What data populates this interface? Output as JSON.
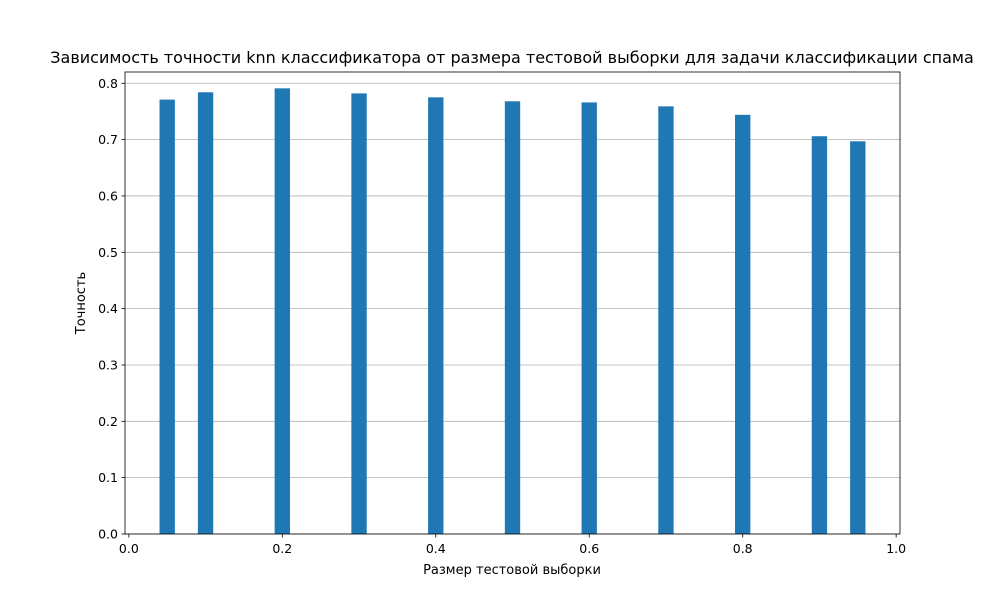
{
  "chart_data": {
    "type": "bar",
    "title": "Зависимость точности knn классификатора от размера тестовой выборки для задачи классификации спама",
    "xlabel": "Размер тестовой выборки",
    "ylabel": "Точность",
    "xlim": [
      -0.005,
      1.005
    ],
    "ylim": [
      0,
      0.82
    ],
    "bar_width": 0.02,
    "x_ticks": [
      "0.0",
      "0.2",
      "0.4",
      "0.6",
      "0.8",
      "1.0"
    ],
    "y_ticks": [
      "0.0",
      "0.1",
      "0.2",
      "0.3",
      "0.4",
      "0.5",
      "0.6",
      "0.7",
      "0.8"
    ],
    "grid": "y",
    "bar_color": "#1f77b4",
    "x": [
      0.05,
      0.1,
      0.2,
      0.3,
      0.4,
      0.5,
      0.6,
      0.7,
      0.8,
      0.9,
      0.95
    ],
    "values": [
      0.771,
      0.784,
      0.791,
      0.782,
      0.775,
      0.768,
      0.766,
      0.759,
      0.744,
      0.706,
      0.697
    ]
  }
}
